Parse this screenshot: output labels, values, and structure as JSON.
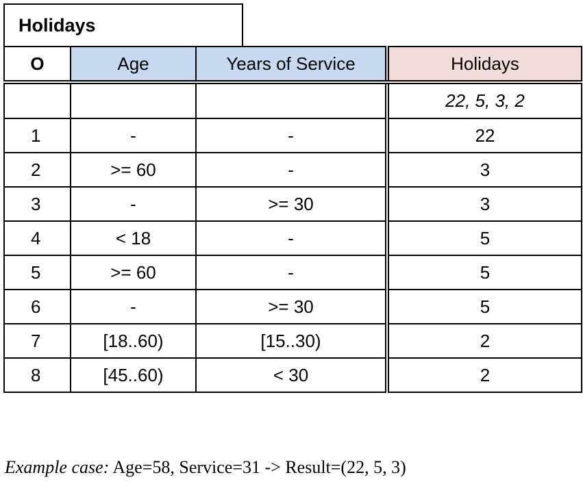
{
  "table": {
    "title": "Holidays",
    "hit_policy": "O",
    "inputs": [
      "Age",
      "Years of Service"
    ],
    "output": "Holidays",
    "output_values": "22, 5, 3, 2",
    "rules": [
      {
        "no": "1",
        "age": "-",
        "service": "-",
        "holidays": "22"
      },
      {
        "no": "2",
        "age": ">= 60",
        "service": "-",
        "holidays": "3"
      },
      {
        "no": "3",
        "age": "-",
        "service": ">= 30",
        "holidays": "3"
      },
      {
        "no": "4",
        "age": "< 18",
        "service": "-",
        "holidays": "5"
      },
      {
        "no": "5",
        "age": ">= 60",
        "service": "-",
        "holidays": "5"
      },
      {
        "no": "6",
        "age": "-",
        "service": ">= 30",
        "holidays": "5"
      },
      {
        "no": "7",
        "age": "[18..60)",
        "service": "[15..30)",
        "holidays": "2"
      },
      {
        "no": "8",
        "age": "[45..60)",
        "service": "< 30",
        "holidays": "2"
      }
    ],
    "colors": {
      "input_header": "#c6d9f1",
      "output_header": "#f2dcdb"
    }
  },
  "example": {
    "label": "Example case:",
    "text": " Age=58, Service=31 -> Result=(22, 5, 3)"
  }
}
